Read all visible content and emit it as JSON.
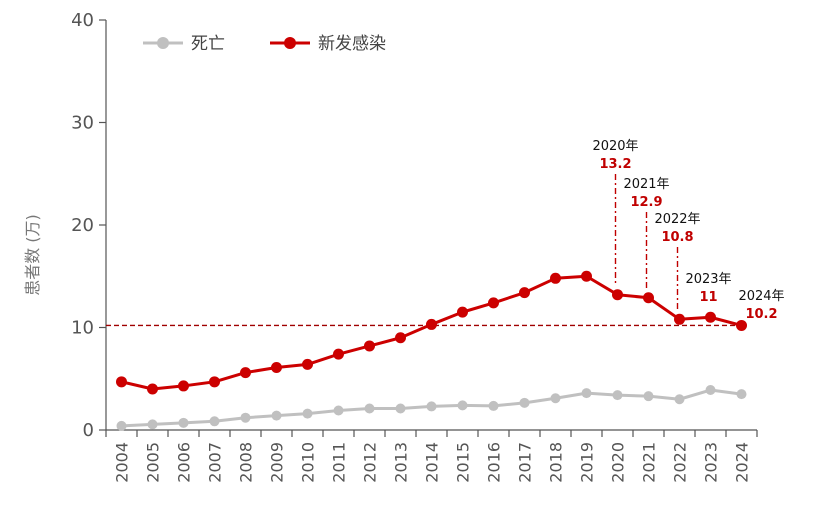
{
  "chart_data": {
    "type": "line",
    "ylabel": "患者数 (万)",
    "ylim": [
      0,
      40
    ],
    "yticks": [
      0,
      10,
      20,
      30,
      40
    ],
    "x": [
      "2004",
      "2005",
      "2006",
      "2007",
      "2008",
      "2009",
      "2010",
      "2011",
      "2012",
      "2013",
      "2014",
      "2015",
      "2016",
      "2017",
      "2018",
      "2019",
      "2020",
      "2021",
      "2022",
      "2023",
      "2024"
    ],
    "legend_position": "top-left",
    "series": [
      {
        "name": "死亡",
        "color": "#c0c0c0",
        "values": [
          0.4,
          0.55,
          0.7,
          0.85,
          1.2,
          1.4,
          1.6,
          1.9,
          2.1,
          2.1,
          2.3,
          2.4,
          2.35,
          2.65,
          3.1,
          3.6,
          3.4,
          3.3,
          3.0,
          3.9,
          3.5
        ]
      },
      {
        "name": "新发感染",
        "color": "#cc0000",
        "values": [
          4.7,
          4.0,
          4.3,
          4.7,
          5.6,
          6.1,
          6.4,
          7.4,
          8.2,
          9.0,
          10.3,
          11.5,
          12.4,
          13.4,
          14.8,
          15.0,
          13.2,
          12.9,
          10.8,
          11.0,
          10.2
        ]
      }
    ],
    "reference_line": {
      "value": 10.2,
      "color": "#a00000",
      "style": "dashed"
    },
    "annotations": [
      {
        "x": "2020",
        "year_label": "2020年",
        "value_label": "13.2",
        "connector": "dash-dot"
      },
      {
        "x": "2021",
        "year_label": "2021年",
        "value_label": "12.9",
        "connector": "dash-dot"
      },
      {
        "x": "2022",
        "year_label": "2022年",
        "value_label": "10.8",
        "connector": "dash-dot"
      },
      {
        "x": "2023",
        "year_label": "2023年",
        "value_label": "11",
        "connector": "none"
      },
      {
        "x": "2024",
        "year_label": "2024年",
        "value_label": "10.2",
        "connector": "none"
      }
    ]
  }
}
